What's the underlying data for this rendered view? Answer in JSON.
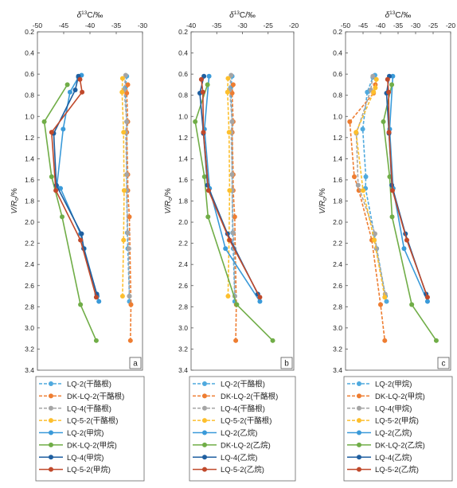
{
  "figure": {
    "ylabel": "V/R_o/%",
    "xlabel_main": "δ13C/‰"
  },
  "chart_data": [
    {
      "type": "line",
      "panel": "a",
      "xlabel": "δ13C/‰",
      "ylabel": "VRo/%",
      "xlim": [
        -50,
        -30
      ],
      "ylim": [
        0.2,
        3.4
      ],
      "y_inverted": true,
      "x_axis_position": "top",
      "xticks": [
        "-50",
        "-45",
        "-40",
        "-35",
        "-30"
      ],
      "yticks": [
        "0.2",
        "0.4",
        "0.6",
        "0.8",
        "1.0",
        "1.2",
        "1.4",
        "1.6",
        "1.8",
        "2.0",
        "2.2",
        "2.4",
        "2.6",
        "2.8",
        "3.0",
        "3.2",
        "3.4"
      ],
      "grid": false,
      "legend_position": "below",
      "series": [
        {
          "name": "LQ-2(干酪根)",
          "color": "#4fa9de",
          "dashed": true,
          "points": [
            [
              -33.0,
              0.62
            ],
            [
              -33.3,
              0.73
            ],
            [
              -33.0,
              1.05
            ],
            [
              -33.0,
              1.15
            ],
            [
              -33.0,
              1.55
            ],
            [
              -33.0,
              1.7
            ],
            [
              -32.9,
              2.1
            ],
            [
              -32.8,
              2.25
            ],
            [
              -32.5,
              2.7
            ],
            [
              -32.5,
              2.75
            ]
          ]
        },
        {
          "name": "DK-LQ-2(干酪根)",
          "color": "#ee7d31",
          "dashed": true,
          "points": [
            [
              -32.8,
              0.7
            ],
            [
              -33.0,
              0.78
            ],
            [
              -32.8,
              1.05
            ],
            [
              -33.0,
              1.15
            ],
            [
              -32.8,
              1.55
            ],
            [
              -32.8,
              1.7
            ],
            [
              -32.5,
              1.95
            ],
            [
              -32.2,
              2.78
            ],
            [
              -32.3,
              3.12
            ]
          ]
        },
        {
          "name": "LQ-4(干酪根)",
          "color": "#a5a5a5",
          "dashed": true,
          "points": [
            [
              -33.2,
              0.61
            ],
            [
              -33.5,
              0.75
            ],
            [
              -33.0,
              1.05
            ],
            [
              -33.2,
              1.15
            ],
            [
              -33.0,
              1.55
            ],
            [
              -33.0,
              1.7
            ],
            [
              -32.8,
              2.1
            ],
            [
              -32.6,
              2.25
            ],
            [
              -32.5,
              2.7
            ]
          ]
        },
        {
          "name": "LQ-5-2(干酪根)",
          "color": "#fdbf2d",
          "dashed": true,
          "points": [
            [
              -33.8,
              0.64
            ],
            [
              -33.9,
              0.77
            ],
            [
              -33.6,
              1.15
            ],
            [
              -33.5,
              1.7
            ],
            [
              -33.6,
              2.17
            ],
            [
              -33.8,
              2.7
            ]
          ]
        },
        {
          "name": "LQ-2(甲烷)",
          "color": "#3a9ad9",
          "dashed": false,
          "points": [
            [
              -41.6,
              0.61
            ],
            [
              -42.2,
              0.63
            ],
            [
              -43.8,
              0.77
            ],
            [
              -45.1,
              1.12
            ],
            [
              -46.3,
              1.66
            ],
            [
              -45.6,
              1.68
            ],
            [
              -41.8,
              2.11
            ],
            [
              -41.1,
              2.25
            ],
            [
              -38.6,
              2.7
            ],
            [
              -38.3,
              2.75
            ]
          ]
        },
        {
          "name": "DK-LQ-2(甲烷)",
          "color": "#70ad47",
          "dashed": false,
          "points": [
            [
              -44.3,
              0.7
            ],
            [
              -48.7,
              1.05
            ],
            [
              -47.3,
              1.57
            ],
            [
              -45.3,
              1.95
            ],
            [
              -41.8,
              2.78
            ],
            [
              -38.8,
              3.12
            ]
          ]
        },
        {
          "name": "LQ-4(甲烷)",
          "color": "#1f5fa0",
          "dashed": false,
          "points": [
            [
              -42.2,
              0.62
            ],
            [
              -42.8,
              0.75
            ],
            [
              -46.9,
              1.16
            ],
            [
              -46.4,
              1.65
            ],
            [
              -41.6,
              2.11
            ],
            [
              -41.2,
              2.25
            ],
            [
              -38.7,
              2.68
            ]
          ]
        },
        {
          "name": "LQ-5-2(甲烷)",
          "color": "#c0492b",
          "dashed": false,
          "points": [
            [
              -41.9,
              0.65
            ],
            [
              -41.5,
              0.77
            ],
            [
              -47.3,
              1.15
            ],
            [
              -46.5,
              1.7
            ],
            [
              -41.8,
              2.17
            ],
            [
              -38.8,
              2.71
            ]
          ]
        }
      ]
    },
    {
      "type": "line",
      "panel": "b",
      "xlabel": "δ13C/‰",
      "ylabel": "VRo/%",
      "xlim": [
        -40,
        -20
      ],
      "ylim": [
        0.2,
        3.4
      ],
      "y_inverted": true,
      "x_axis_position": "top",
      "xticks": [
        "-40",
        "-35",
        "-30",
        "-25",
        "-20"
      ],
      "yticks": [
        "0.2",
        "0.4",
        "0.6",
        "0.8",
        "1.0",
        "1.2",
        "1.4",
        "1.6",
        "1.8",
        "2.0",
        "2.2",
        "2.4",
        "2.6",
        "2.8",
        "3.0",
        "3.2",
        "3.4"
      ],
      "grid": false,
      "legend_position": "below",
      "series": [
        {
          "name": "LQ-2(干酪根)",
          "color": "#4fa9de",
          "dashed": true,
          "points": [
            [
              -32.0,
              0.62
            ],
            [
              -32.3,
              0.73
            ],
            [
              -32.0,
              1.05
            ],
            [
              -32.0,
              1.15
            ],
            [
              -32.0,
              1.55
            ],
            [
              -32.0,
              1.7
            ],
            [
              -31.9,
              2.1
            ],
            [
              -31.8,
              2.25
            ],
            [
              -31.5,
              2.7
            ],
            [
              -31.5,
              2.75
            ]
          ]
        },
        {
          "name": "DK-LQ-2(干酪根)",
          "color": "#ee7d31",
          "dashed": true,
          "points": [
            [
              -31.8,
              0.7
            ],
            [
              -32.0,
              0.78
            ],
            [
              -31.8,
              1.05
            ],
            [
              -32.0,
              1.15
            ],
            [
              -31.8,
              1.55
            ],
            [
              -31.8,
              1.7
            ],
            [
              -31.5,
              1.95
            ],
            [
              -31.2,
              2.78
            ],
            [
              -31.3,
              3.12
            ]
          ]
        },
        {
          "name": "LQ-4(干酪根)",
          "color": "#a5a5a5",
          "dashed": true,
          "points": [
            [
              -32.2,
              0.61
            ],
            [
              -32.5,
              0.75
            ],
            [
              -32.0,
              1.05
            ],
            [
              -32.2,
              1.15
            ],
            [
              -32.0,
              1.55
            ],
            [
              -32.0,
              1.7
            ],
            [
              -31.8,
              2.1
            ],
            [
              -31.6,
              2.25
            ],
            [
              -31.5,
              2.7
            ]
          ]
        },
        {
          "name": "LQ-5-2(干酪根)",
          "color": "#fdbf2d",
          "dashed": true,
          "points": [
            [
              -32.8,
              0.64
            ],
            [
              -32.9,
              0.77
            ],
            [
              -32.6,
              1.15
            ],
            [
              -32.5,
              1.7
            ],
            [
              -32.6,
              2.17
            ],
            [
              -32.8,
              2.7
            ]
          ]
        },
        {
          "name": "LQ-2(乙烷)",
          "color": "#3a9ad9",
          "dashed": false,
          "points": [
            [
              -36.5,
              0.62
            ],
            [
              -37.4,
              1.12
            ],
            [
              -36.4,
              1.68
            ],
            [
              -33.3,
              2.25
            ],
            [
              -26.6,
              2.75
            ]
          ]
        },
        {
          "name": "DK-LQ-2(乙烷)",
          "color": "#70ad47",
          "dashed": false,
          "points": [
            [
              -36.8,
              0.7
            ],
            [
              -39.2,
              1.05
            ],
            [
              -37.4,
              1.57
            ],
            [
              -36.7,
              1.95
            ],
            [
              -31.1,
              2.78
            ],
            [
              -24.1,
              3.12
            ]
          ]
        },
        {
          "name": "LQ-4(乙烷)",
          "color": "#1f5fa0",
          "dashed": false,
          "points": [
            [
              -37.5,
              0.62
            ],
            [
              -38.3,
              0.78
            ],
            [
              -37.6,
              1.16
            ],
            [
              -36.8,
              1.65
            ],
            [
              -32.9,
              2.11
            ],
            [
              -27.0,
              2.68
            ]
          ]
        },
        {
          "name": "LQ-5-2(乙烷)",
          "color": "#c0492b",
          "dashed": false,
          "points": [
            [
              -38.0,
              0.65
            ],
            [
              -37.7,
              0.77
            ],
            [
              -37.6,
              1.15
            ],
            [
              -36.6,
              1.7
            ],
            [
              -32.5,
              2.17
            ],
            [
              -26.6,
              2.71
            ]
          ]
        }
      ]
    },
    {
      "type": "line",
      "panel": "c",
      "xlabel": "δ13C/‰",
      "ylabel": "VRo/%",
      "xlim": [
        -50,
        -20
      ],
      "ylim": [
        0.2,
        3.4
      ],
      "y_inverted": true,
      "x_axis_position": "top",
      "xticks": [
        "-50",
        "-45",
        "-40",
        "-35",
        "-30",
        "-25",
        "-20"
      ],
      "yticks": [
        "0.2",
        "0.4",
        "0.6",
        "0.8",
        "1.0",
        "1.2",
        "1.4",
        "1.6",
        "1.8",
        "2.0",
        "2.2",
        "2.4",
        "2.6",
        "2.8",
        "3.0",
        "3.2",
        "3.4"
      ],
      "grid": false,
      "legend_position": "below",
      "series": [
        {
          "name": "LQ-2(甲烷)",
          "color": "#4fa9de",
          "dashed": true,
          "points": [
            [
              -41.6,
              0.61
            ],
            [
              -42.2,
              0.63
            ],
            [
              -43.8,
              0.77
            ],
            [
              -45.1,
              1.12
            ],
            [
              -44.2,
              1.57
            ],
            [
              -44.3,
              1.68
            ],
            [
              -41.8,
              2.11
            ],
            [
              -41.1,
              2.25
            ],
            [
              -38.6,
              2.7
            ],
            [
              -38.3,
              2.75
            ]
          ]
        },
        {
          "name": "DK-LQ-2(甲烷)",
          "color": "#ee7d31",
          "dashed": true,
          "points": [
            [
              -41.5,
              0.7
            ],
            [
              -42.0,
              0.78
            ],
            [
              -48.8,
              1.05
            ],
            [
              -47.5,
              1.57
            ],
            [
              -46.2,
              1.7
            ],
            [
              -42.5,
              2.17
            ],
            [
              -40.0,
              2.78
            ],
            [
              -38.8,
              3.12
            ]
          ]
        },
        {
          "name": "LQ-4(甲烷)",
          "color": "#a5a5a5",
          "dashed": true,
          "points": [
            [
              -42.2,
              0.62
            ],
            [
              -42.8,
              0.75
            ],
            [
              -46.9,
              1.16
            ],
            [
              -46.4,
              1.65
            ],
            [
              -41.6,
              2.11
            ],
            [
              -41.2,
              2.25
            ],
            [
              -38.7,
              2.68
            ]
          ]
        },
        {
          "name": "LQ-5-2(甲烷)",
          "color": "#fdbf2d",
          "dashed": true,
          "points": [
            [
              -41.2,
              0.65
            ],
            [
              -41.5,
              0.73
            ],
            [
              -42.0,
              0.77
            ],
            [
              -47.0,
              1.15
            ],
            [
              -45.0,
              1.7
            ],
            [
              -41.8,
              2.17
            ],
            [
              -38.8,
              2.71
            ]
          ]
        },
        {
          "name": "LQ-2(乙烷)",
          "color": "#3a9ad9",
          "dashed": false,
          "points": [
            [
              -36.5,
              0.62
            ],
            [
              -37.4,
              1.12
            ],
            [
              -36.4,
              1.68
            ],
            [
              -33.3,
              2.25
            ],
            [
              -26.6,
              2.75
            ]
          ]
        },
        {
          "name": "DK-LQ-2(乙烷)",
          "color": "#70ad47",
          "dashed": false,
          "points": [
            [
              -36.8,
              0.7
            ],
            [
              -39.2,
              1.05
            ],
            [
              -37.4,
              1.57
            ],
            [
              -36.7,
              1.95
            ],
            [
              -31.1,
              2.78
            ],
            [
              -24.1,
              3.12
            ]
          ]
        },
        {
          "name": "LQ-4(乙烷)",
          "color": "#1f5fa0",
          "dashed": false,
          "points": [
            [
              -37.5,
              0.62
            ],
            [
              -38.3,
              0.78
            ],
            [
              -37.6,
              1.16
            ],
            [
              -36.8,
              1.65
            ],
            [
              -32.9,
              2.11
            ],
            [
              -27.0,
              2.68
            ]
          ]
        },
        {
          "name": "LQ-5-2(乙烷)",
          "color": "#c0492b",
          "dashed": false,
          "points": [
            [
              -38.0,
              0.65
            ],
            [
              -37.7,
              0.77
            ],
            [
              -37.6,
              1.15
            ],
            [
              -36.6,
              1.7
            ],
            [
              -32.5,
              2.17
            ],
            [
              -26.6,
              2.71
            ]
          ]
        }
      ]
    }
  ]
}
